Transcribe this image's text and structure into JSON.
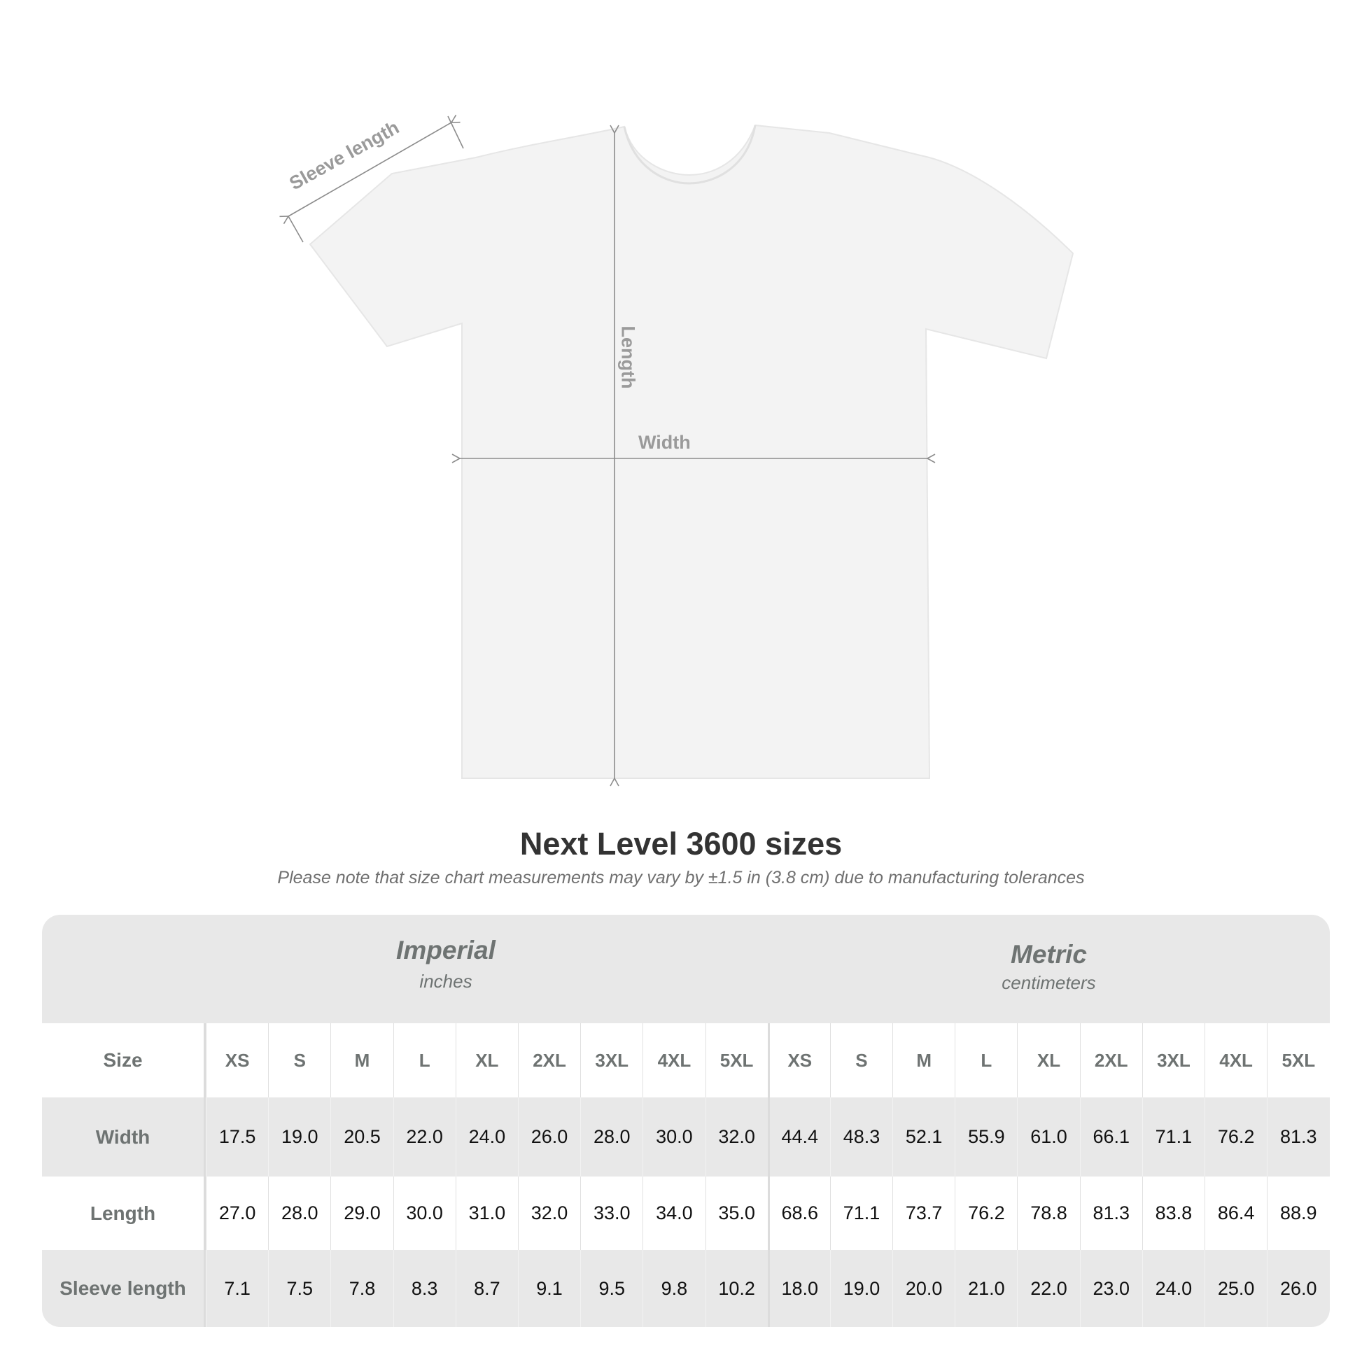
{
  "diagram": {
    "labels": {
      "sleeve": "Sleeve length",
      "length": "Length",
      "width": "Width"
    },
    "shirt_color": "#f3f3f3",
    "arrow_color": "#8c8c8c"
  },
  "title": "Next Level 3600 sizes",
  "subtitle": "Please note that size chart measurements may vary by ±1.5 in (3.8 cm) due to manufacturing tolerances",
  "table": {
    "imperial": {
      "name": "Imperial",
      "unit": "inches"
    },
    "metric": {
      "name": "Metric",
      "unit": "centimeters"
    },
    "size_label": "Size",
    "sizes": [
      "XS",
      "S",
      "M",
      "L",
      "XL",
      "2XL",
      "3XL",
      "4XL",
      "5XL"
    ],
    "rows": [
      {
        "label": "Width",
        "imperial": [
          "17.5",
          "19.0",
          "20.5",
          "22.0",
          "24.0",
          "26.0",
          "28.0",
          "30.0",
          "32.0"
        ],
        "metric": [
          "44.4",
          "48.3",
          "52.1",
          "55.9",
          "61.0",
          "66.1",
          "71.1",
          "76.2",
          "81.3"
        ]
      },
      {
        "label": "Length",
        "imperial": [
          "27.0",
          "28.0",
          "29.0",
          "30.0",
          "31.0",
          "32.0",
          "33.0",
          "34.0",
          "35.0"
        ],
        "metric": [
          "68.6",
          "71.1",
          "73.7",
          "76.2",
          "78.8",
          "81.3",
          "83.8",
          "86.4",
          "88.9"
        ]
      },
      {
        "label": "Sleeve length",
        "imperial": [
          "7.1",
          "7.5",
          "7.8",
          "8.3",
          "8.7",
          "9.1",
          "9.5",
          "9.8",
          "10.2"
        ],
        "metric": [
          "18.0",
          "19.0",
          "20.0",
          "21.0",
          "22.0",
          "23.0",
          "24.0",
          "25.0",
          "26.0"
        ]
      }
    ]
  }
}
